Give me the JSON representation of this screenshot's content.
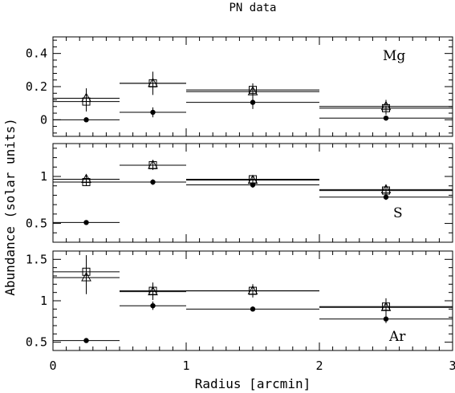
{
  "chart_data": {
    "type": "scatter",
    "title": "PN data",
    "xlabel": "Radius [arcmin]",
    "ylabel": "Abundance (solar units)",
    "xlim": [
      0,
      3
    ],
    "x_ticks": [
      "0",
      "1",
      "2",
      "3"
    ],
    "panels": [
      {
        "label": "Mg",
        "ylim": [
          -0.1,
          0.5
        ],
        "y_ticks": [
          "0",
          "0.2",
          "0.4"
        ],
        "series": [
          {
            "marker": "triangle",
            "points": [
              {
                "x": 0.25,
                "xlo": 0,
                "xhi": 0.5,
                "y": 0.13,
                "yerr": 0.06
              },
              {
                "x": 0.75,
                "xlo": 0.5,
                "xhi": 1,
                "y": 0.22,
                "yerr": 0.06
              },
              {
                "x": 1.5,
                "xlo": 1,
                "xhi": 2,
                "y": 0.17,
                "yerr": 0.04
              },
              {
                "x": 2.5,
                "xlo": 2,
                "xhi": 3,
                "y": 0.08,
                "yerr": 0.04
              }
            ]
          },
          {
            "marker": "square",
            "points": [
              {
                "x": 0.25,
                "xlo": 0,
                "xhi": 0.5,
                "y": 0.11,
                "yerr": 0.06
              },
              {
                "x": 0.75,
                "xlo": 0.5,
                "xhi": 1,
                "y": 0.22,
                "yerr": 0.07
              },
              {
                "x": 1.5,
                "xlo": 1,
                "xhi": 2,
                "y": 0.18,
                "yerr": 0.04
              },
              {
                "x": 2.5,
                "xlo": 2,
                "xhi": 3,
                "y": 0.07,
                "yerr": 0.04
              }
            ]
          },
          {
            "marker": "circle",
            "points": [
              {
                "x": 0.25,
                "xlo": 0,
                "xhi": 0.5,
                "y": 0.0,
                "yerr": 0.01
              },
              {
                "x": 0.75,
                "xlo": 0.5,
                "xhi": 1,
                "y": 0.045,
                "yerr": 0.03
              },
              {
                "x": 1.5,
                "xlo": 1,
                "xhi": 2,
                "y": 0.105,
                "yerr": 0.04
              },
              {
                "x": 2.5,
                "xlo": 2,
                "xhi": 3,
                "y": 0.01,
                "yerr": 0.01
              }
            ]
          }
        ]
      },
      {
        "label": "S",
        "ylim": [
          0.3,
          1.35
        ],
        "y_ticks": [
          "0.5",
          "1"
        ],
        "series": [
          {
            "marker": "triangle",
            "points": [
              {
                "x": 0.25,
                "xlo": 0,
                "xhi": 0.5,
                "y": 0.97,
                "yerr": 0.04
              },
              {
                "x": 0.75,
                "xlo": 0.5,
                "xhi": 1,
                "y": 1.12,
                "yerr": 0.05
              },
              {
                "x": 1.5,
                "xlo": 1,
                "xhi": 2,
                "y": 0.96,
                "yerr": 0.04
              },
              {
                "x": 2.5,
                "xlo": 2,
                "xhi": 3,
                "y": 0.86,
                "yerr": 0.04
              }
            ]
          },
          {
            "marker": "square",
            "points": [
              {
                "x": 0.25,
                "xlo": 0,
                "xhi": 0.5,
                "y": 0.94,
                "yerr": 0.04
              },
              {
                "x": 0.75,
                "xlo": 0.5,
                "xhi": 1,
                "y": 1.12,
                "yerr": 0.05
              },
              {
                "x": 1.5,
                "xlo": 1,
                "xhi": 2,
                "y": 0.97,
                "yerr": 0.04
              },
              {
                "x": 2.5,
                "xlo": 2,
                "xhi": 3,
                "y": 0.85,
                "yerr": 0.04
              }
            ]
          },
          {
            "marker": "circle",
            "points": [
              {
                "x": 0.25,
                "xlo": 0,
                "xhi": 0.5,
                "y": 0.51,
                "yerr": 0.01
              },
              {
                "x": 0.75,
                "xlo": 0.5,
                "xhi": 1,
                "y": 0.94,
                "yerr": 0.03
              },
              {
                "x": 1.5,
                "xlo": 1,
                "xhi": 2,
                "y": 0.91,
                "yerr": 0.03
              },
              {
                "x": 2.5,
                "xlo": 2,
                "xhi": 3,
                "y": 0.78,
                "yerr": 0.03
              }
            ]
          }
        ]
      },
      {
        "label": "Ar",
        "ylim": [
          0.4,
          1.6
        ],
        "y_ticks": [
          "0.5",
          "1",
          "1.5"
        ],
        "series": [
          {
            "marker": "triangle",
            "points": [
              {
                "x": 0.25,
                "xlo": 0,
                "xhi": 0.5,
                "y": 1.28,
                "yerr": 0.2
              },
              {
                "x": 0.75,
                "xlo": 0.5,
                "xhi": 1,
                "y": 1.11,
                "yerr": 0.1
              },
              {
                "x": 1.5,
                "xlo": 1,
                "xhi": 2,
                "y": 1.12,
                "yerr": 0.08
              },
              {
                "x": 2.5,
                "xlo": 2,
                "xhi": 3,
                "y": 0.92,
                "yerr": 0.1
              }
            ]
          },
          {
            "marker": "square",
            "points": [
              {
                "x": 0.25,
                "xlo": 0,
                "xhi": 0.5,
                "y": 1.35,
                "yerr": 0.2
              },
              {
                "x": 0.75,
                "xlo": 0.5,
                "xhi": 1,
                "y": 1.12,
                "yerr": 0.1
              },
              {
                "x": 1.5,
                "xlo": 1,
                "xhi": 2,
                "y": 1.12,
                "yerr": 0.08
              },
              {
                "x": 2.5,
                "xlo": 2,
                "xhi": 3,
                "y": 0.93,
                "yerr": 0.1
              }
            ]
          },
          {
            "marker": "circle",
            "points": [
              {
                "x": 0.25,
                "xlo": 0,
                "xhi": 0.5,
                "y": 0.52,
                "yerr": 0.01
              },
              {
                "x": 0.75,
                "xlo": 0.5,
                "xhi": 1,
                "y": 0.94,
                "yerr": 0.05
              },
              {
                "x": 1.5,
                "xlo": 1,
                "xhi": 2,
                "y": 0.9,
                "yerr": 0.03
              },
              {
                "x": 2.5,
                "xlo": 2,
                "xhi": 3,
                "y": 0.78,
                "yerr": 0.05
              }
            ]
          }
        ]
      }
    ]
  }
}
